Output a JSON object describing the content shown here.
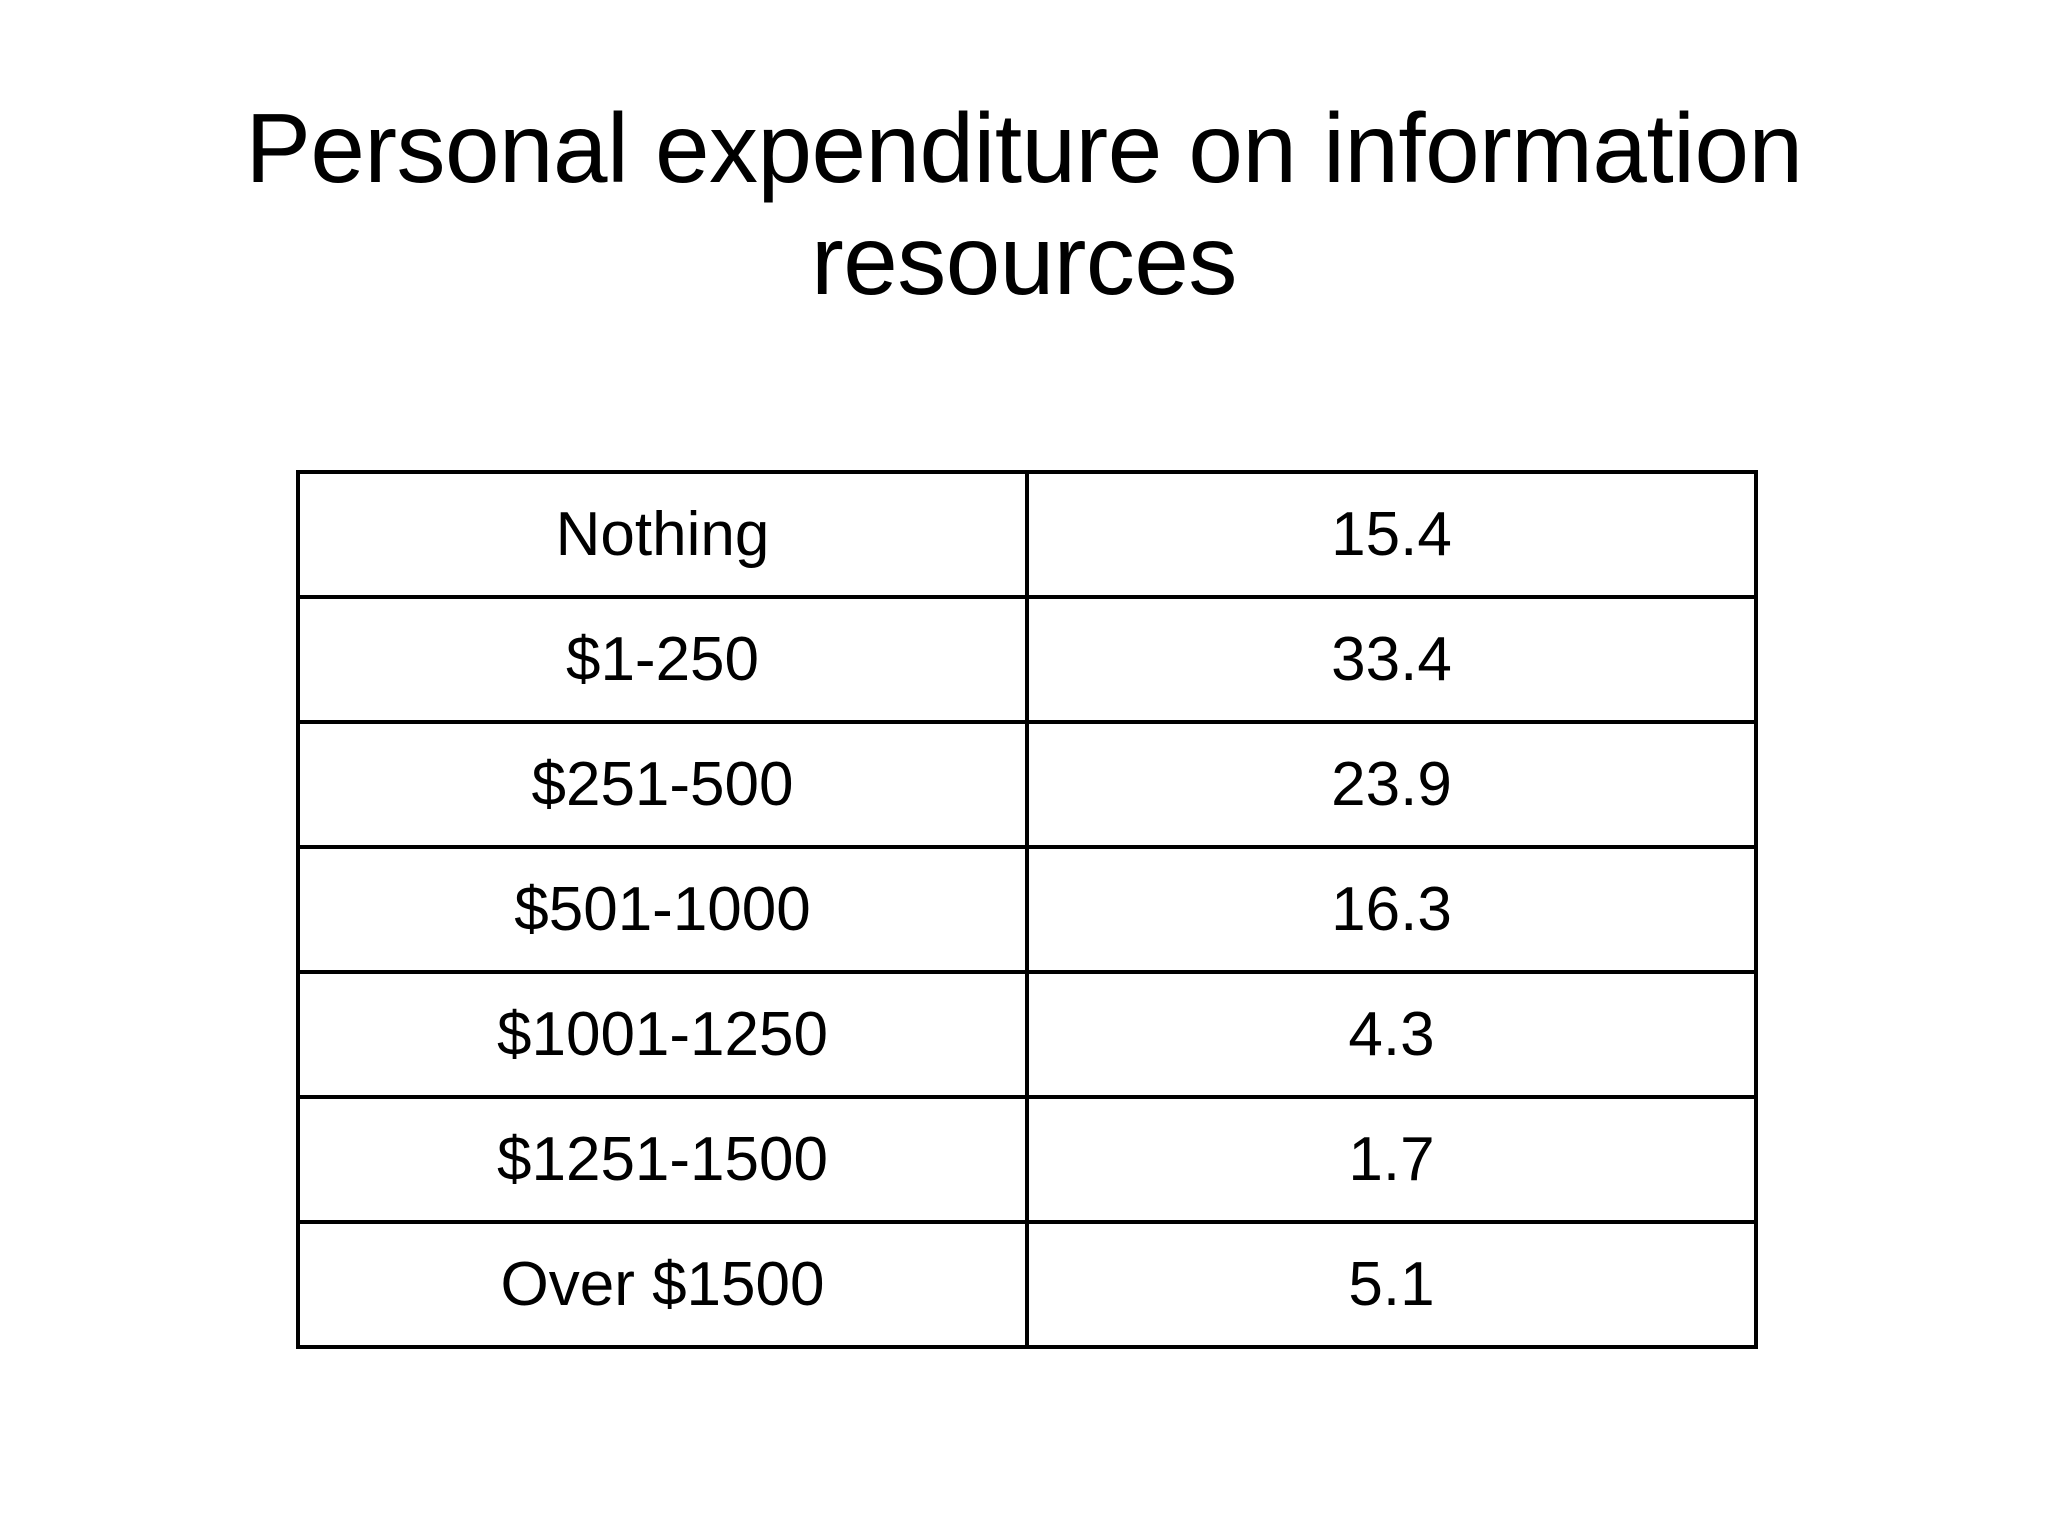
{
  "slide": {
    "title": "Personal expenditure on information resources"
  },
  "table": {
    "rows": [
      {
        "label": "Nothing",
        "value": "15.4"
      },
      {
        "label": "$1-250",
        "value": "33.4"
      },
      {
        "label": "$251-500",
        "value": "23.9"
      },
      {
        "label": "$501-1000",
        "value": "16.3"
      },
      {
        "label": "$1001-1250",
        "value": "4.3"
      },
      {
        "label": "$1251-1500",
        "value": "1.7"
      },
      {
        "label": "Over $1500",
        "value": "5.1"
      }
    ]
  },
  "chart_data": {
    "type": "table",
    "title": "Personal expenditure on information resources",
    "categories": [
      "Nothing",
      "$1-250",
      "$251-500",
      "$501-1000",
      "$1001-1250",
      "$1251-1500",
      "Over $1500"
    ],
    "values": [
      15.4,
      33.4,
      23.9,
      16.3,
      4.3,
      1.7,
      5.1
    ]
  },
  "colors": {
    "background": "#ffffff",
    "text": "#000000",
    "border": "#000000"
  }
}
